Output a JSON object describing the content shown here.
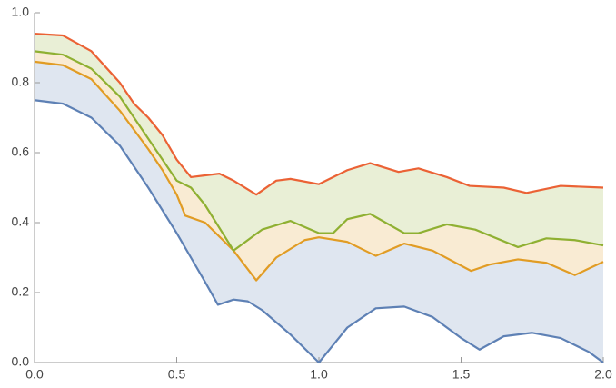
{
  "chart_data": {
    "type": "line",
    "xlim": [
      0,
      2
    ],
    "ylim": [
      0,
      1
    ],
    "xticks": [
      {
        "value": 0,
        "label": "0.0"
      },
      {
        "value": 0.5,
        "label": "0.5"
      },
      {
        "value": 1,
        "label": "1.0"
      },
      {
        "value": 1.5,
        "label": "1.5"
      },
      {
        "value": 2,
        "label": "2.0"
      }
    ],
    "yticks": [
      {
        "value": 0,
        "label": "0.0"
      },
      {
        "value": 0.2,
        "label": "0.2"
      },
      {
        "value": 0.4,
        "label": "0.4"
      },
      {
        "value": 0.6,
        "label": "0.6"
      },
      {
        "value": 0.8,
        "label": "0.8"
      },
      {
        "value": 1,
        "label": "1.0"
      }
    ],
    "filling": true,
    "series": [
      {
        "color": "#5e81b5",
        "x": [
          0,
          0.1,
          0.2,
          0.3,
          0.4,
          0.5,
          0.55,
          0.6,
          0.645,
          0.7,
          0.75,
          0.8,
          0.9,
          1.0,
          1.1,
          1.2,
          1.3,
          1.4,
          1.5,
          1.565,
          1.65,
          1.75,
          1.85,
          1.95,
          2.0
        ],
        "values": [
          0.75,
          0.74,
          0.7,
          0.62,
          0.5,
          0.37,
          0.3,
          0.23,
          0.165,
          0.18,
          0.175,
          0.15,
          0.08,
          0.0,
          0.1,
          0.155,
          0.16,
          0.13,
          0.07,
          0.037,
          0.075,
          0.085,
          0.07,
          0.03,
          0.0
        ]
      },
      {
        "color": "#e19c24",
        "x": [
          0,
          0.1,
          0.2,
          0.3,
          0.4,
          0.45,
          0.5,
          0.53,
          0.6,
          0.7,
          0.78,
          0.85,
          0.95,
          1.0,
          1.1,
          1.2,
          1.3,
          1.4,
          1.535,
          1.6,
          1.7,
          1.8,
          1.9,
          2.0
        ],
        "values": [
          0.86,
          0.85,
          0.81,
          0.72,
          0.61,
          0.55,
          0.48,
          0.42,
          0.4,
          0.32,
          0.235,
          0.3,
          0.35,
          0.358,
          0.345,
          0.305,
          0.34,
          0.32,
          0.262,
          0.28,
          0.295,
          0.285,
          0.25,
          0.288
        ]
      },
      {
        "color": "#8fb032",
        "x": [
          0,
          0.1,
          0.2,
          0.3,
          0.4,
          0.5,
          0.55,
          0.6,
          0.7,
          0.8,
          0.9,
          1.0,
          1.05,
          1.1,
          1.18,
          1.3,
          1.35,
          1.45,
          1.55,
          1.7,
          1.8,
          1.9,
          2.0
        ],
        "values": [
          0.89,
          0.88,
          0.84,
          0.76,
          0.64,
          0.52,
          0.5,
          0.45,
          0.32,
          0.38,
          0.405,
          0.37,
          0.37,
          0.41,
          0.425,
          0.37,
          0.37,
          0.395,
          0.38,
          0.33,
          0.355,
          0.35,
          0.335
        ]
      },
      {
        "color": "#eb6235",
        "x": [
          0,
          0.1,
          0.2,
          0.3,
          0.35,
          0.4,
          0.45,
          0.5,
          0.55,
          0.6,
          0.65,
          0.7,
          0.78,
          0.85,
          0.9,
          1.0,
          1.1,
          1.18,
          1.28,
          1.35,
          1.45,
          1.53,
          1.65,
          1.73,
          1.85,
          2.0
        ],
        "values": [
          0.94,
          0.935,
          0.89,
          0.8,
          0.74,
          0.7,
          0.65,
          0.58,
          0.53,
          0.535,
          0.54,
          0.52,
          0.48,
          0.52,
          0.525,
          0.51,
          0.55,
          0.57,
          0.545,
          0.555,
          0.53,
          0.505,
          0.5,
          0.485,
          0.505,
          0.5
        ]
      }
    ]
  }
}
